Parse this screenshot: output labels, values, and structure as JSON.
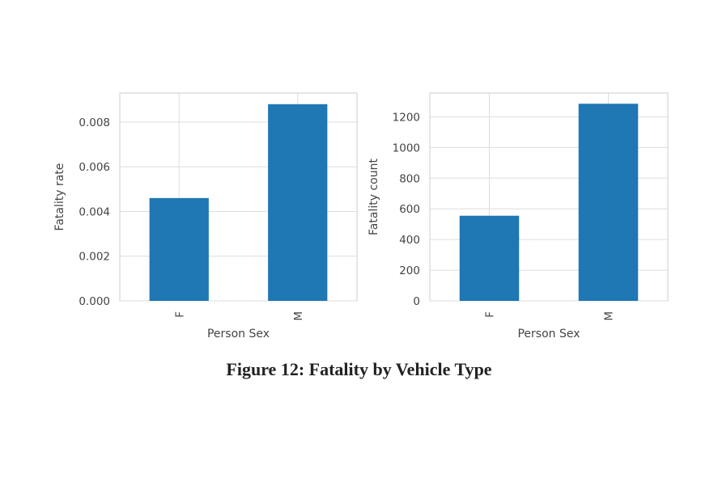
{
  "caption": "Figure 12: Fatality by Vehicle Type",
  "colors": {
    "bar": "#1f77b4",
    "grid": "#dddddd",
    "frame": "#cccccc",
    "text": "#444444"
  },
  "chart_data": [
    {
      "type": "bar",
      "categories": [
        "F",
        "M"
      ],
      "values": [
        0.0046,
        0.0088
      ],
      "xlabel": "Person Sex",
      "ylabel": "Fatality rate",
      "ylim": [
        0,
        0.0093
      ],
      "yticks": [
        0,
        0.002,
        0.004,
        0.006,
        0.008
      ],
      "ytick_labels": [
        "0.000",
        "0.002",
        "0.004",
        "0.006",
        "0.008"
      ],
      "grid": true,
      "legend": "none"
    },
    {
      "type": "bar",
      "categories": [
        "F",
        "M"
      ],
      "values": [
        555,
        1285
      ],
      "xlabel": "Person Sex",
      "ylabel": "Fatality count",
      "ylim": [
        0,
        1355
      ],
      "yticks": [
        0,
        200,
        400,
        600,
        800,
        1000,
        1200
      ],
      "ytick_labels": [
        "0",
        "200",
        "400",
        "600",
        "800",
        "1000",
        "1200"
      ],
      "grid": true,
      "legend": "none"
    }
  ]
}
